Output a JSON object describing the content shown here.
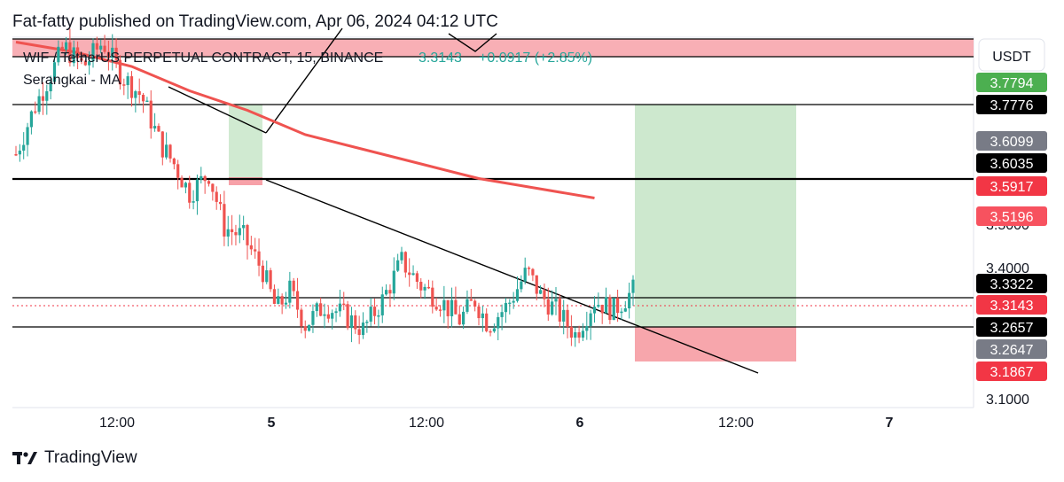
{
  "header": {
    "published": "Fat-fatty published on TradingView.com, Apr 06, 2024 04:12 UTC"
  },
  "legend": {
    "symbol": "WIF / TetherUS PERPETUAL CONTRACT, 15, BINANCE",
    "last_price": "3.3143",
    "change": "+0.0917 (+2.85%)",
    "indicator": "Serangkai - MA"
  },
  "price_axis": {
    "currency": "USDT",
    "tick_labels": [
      "3.4000",
      "3.1000"
    ],
    "hidden_label_partial": "3.5000"
  },
  "time_axis": {
    "labels": [
      "12:00",
      "5",
      "12:00",
      "6",
      "12:00",
      "7"
    ]
  },
  "price_labels": [
    {
      "value": "3.7794",
      "bg": "#4caf50",
      "fg": "#ffffff"
    },
    {
      "value": "3.7776",
      "bg": "#000000",
      "fg": "#ffffff"
    },
    {
      "value": "3.6099",
      "bg": "#787b86",
      "fg": "#ffffff"
    },
    {
      "value": "3.6035",
      "bg": "#000000",
      "fg": "#ffffff"
    },
    {
      "value": "3.5917",
      "bg": "#f23645",
      "fg": "#ffffff"
    },
    {
      "value": "3.5196",
      "bg": "#f7525f",
      "fg": "#ffffff"
    },
    {
      "value": "3.3322",
      "bg": "#000000",
      "fg": "#ffffff"
    },
    {
      "value": "3.3143",
      "bg": "#f23645",
      "fg": "#ffffff"
    },
    {
      "value": "3.2657",
      "bg": "#000000",
      "fg": "#ffffff"
    },
    {
      "value": "3.2647",
      "bg": "#787b86",
      "fg": "#ffffff"
    },
    {
      "value": "3.1867",
      "bg": "#f23645",
      "fg": "#ffffff"
    }
  ],
  "colors": {
    "up": "#26a69a",
    "down": "#ef5350",
    "ma": "#ef5350",
    "target_zone": "#c8e6c9",
    "stop_zone": "#f7a1a8",
    "supply_zone": "#f7a1a8"
  },
  "footer": {
    "brand": "TradingView"
  },
  "chart_data": {
    "type": "candlestick",
    "symbol": "WIF / TetherUS PERPETUAL CONTRACT",
    "timeframe": "15",
    "exchange": "BINANCE",
    "y_range": [
      3.08,
      3.84
    ],
    "close_path": [
      [
        0,
        3.6
      ],
      [
        10,
        3.7
      ],
      [
        25,
        3.82
      ],
      [
        35,
        3.78
      ],
      [
        45,
        3.83
      ],
      [
        55,
        3.76
      ],
      [
        65,
        3.72
      ],
      [
        75,
        3.62
      ],
      [
        82,
        3.58
      ],
      [
        90,
        3.52
      ],
      [
        100,
        3.56
      ],
      [
        108,
        3.45
      ],
      [
        118,
        3.43
      ],
      [
        128,
        3.36
      ],
      [
        135,
        3.28
      ],
      [
        142,
        3.32
      ],
      [
        150,
        3.25
      ],
      [
        160,
        3.29
      ],
      [
        170,
        3.27
      ],
      [
        180,
        3.24
      ],
      [
        190,
        3.3
      ],
      [
        200,
        3.38
      ],
      [
        210,
        3.33
      ],
      [
        220,
        3.3
      ],
      [
        230,
        3.26
      ],
      [
        238,
        3.3
      ],
      [
        245,
        3.25
      ],
      [
        255,
        3.29
      ],
      [
        265,
        3.36
      ],
      [
        272,
        3.31
      ],
      [
        280,
        3.28
      ],
      [
        290,
        3.23
      ],
      [
        300,
        3.3
      ],
      [
        310,
        3.28
      ],
      [
        320,
        3.32
      ]
    ],
    "ma_path": [
      [
        0,
        3.83
      ],
      [
        30,
        3.81
      ],
      [
        60,
        3.78
      ],
      [
        90,
        3.73
      ],
      [
        120,
        3.69
      ],
      [
        150,
        3.64
      ],
      [
        180,
        3.61
      ],
      [
        210,
        3.58
      ],
      [
        240,
        3.55
      ],
      [
        270,
        3.53
      ],
      [
        300,
        3.51
      ]
    ],
    "horizontal_levels": [
      3.7776,
      3.6035,
      3.3322,
      3.2657
    ],
    "trendline": {
      "from": [
        120,
        3.6
      ],
      "to": [
        385,
        3.17
      ]
    },
    "position": {
      "entry": 3.2657,
      "target": 3.7776,
      "stop": 3.1867
    },
    "ylim": [
      3.08,
      3.84
    ]
  }
}
